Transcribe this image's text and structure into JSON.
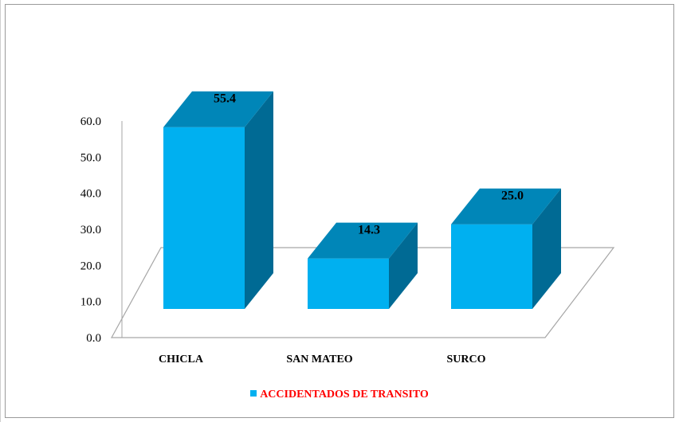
{
  "colors": {
    "bar_front": "#00b0f0",
    "bar_top": "#0086b8",
    "bar_side": "#006a94",
    "legend_text": "#ff0000",
    "axis": "#a6a6a6"
  },
  "chart_data": {
    "type": "bar",
    "categories": [
      "CHICLA",
      "SAN MATEO",
      "SURCO"
    ],
    "series": [
      {
        "name": "ACCIDENTADOS DE TRANSITO",
        "values": [
          55.4,
          14.3,
          25.0
        ]
      }
    ],
    "value_labels": [
      "55.4",
      "14.3",
      "25.0"
    ],
    "y_ticks": [
      "0.0",
      "10.0",
      "20.0",
      "30.0",
      "40.0",
      "50.0",
      "60.0"
    ],
    "ylim": [
      0,
      60
    ],
    "grid": false,
    "legend_position": "bottom",
    "three_d": true
  }
}
